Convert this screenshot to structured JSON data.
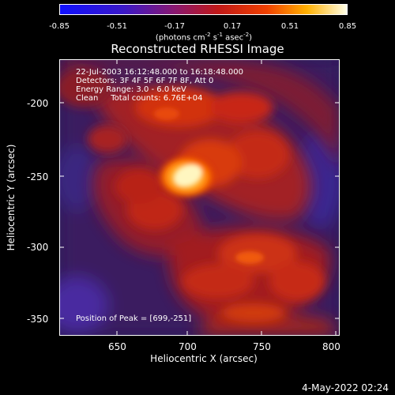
{
  "colorbar": {
    "ticks": [
      "-0.85",
      "-0.51",
      "-0.17",
      "0.17",
      "0.51",
      "0.85"
    ],
    "unit_prefix": "(photons cm",
    "unit_sup1": "-2",
    "unit_mid1": " s",
    "unit_sup2": "-1",
    "unit_mid2": " asec",
    "unit_sup3": "-2",
    "unit_suffix": ")"
  },
  "plot": {
    "title": "Reconstructed RHESSI Image",
    "annotations": [
      "22-Jul-2003 16:12:48.000 to 16:18:48.000",
      "Detectors: 3F 4F 5F 6F 7F 8F, Att 0",
      "Energy Range: 3.0 - 6.0 keV",
      "Clean     Total counts: 6.76E+04"
    ],
    "peak_label": "Position of Peak = [699,-251]",
    "xlabel": "Heliocentric X (arcsec)",
    "ylabel": "Heliocentric Y (arcsec)",
    "x_ticks": [
      "650",
      "700",
      "750",
      "800"
    ],
    "y_ticks": [
      "-200",
      "-250",
      "-300",
      "-350"
    ]
  },
  "timestamp": "4-May-2022 02:24",
  "colors": {
    "background": "#000000",
    "axes": "#ffffff"
  }
}
